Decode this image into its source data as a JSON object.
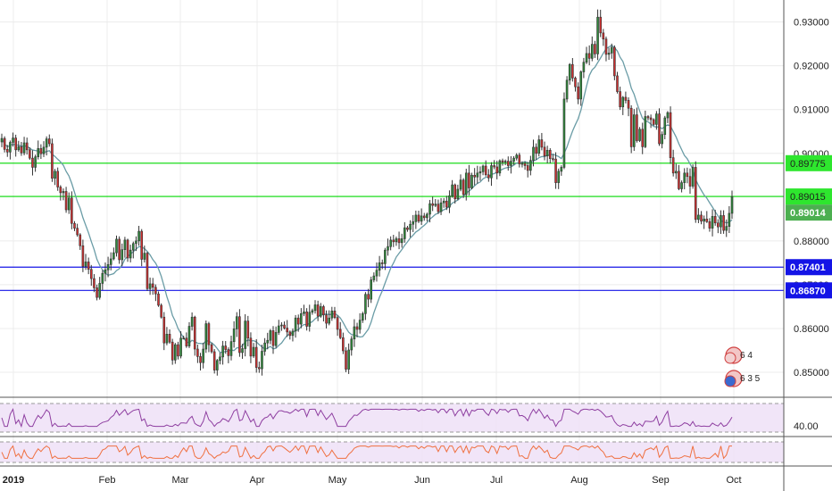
{
  "chart_data": {
    "type": "candlestick",
    "title": "",
    "x_labels": [
      "2019",
      "Feb",
      "Mar",
      "Apr",
      "May",
      "Jun",
      "Jul",
      "Aug",
      "Sep",
      "Oct"
    ],
    "y_ticks": [
      "0.93000",
      "0.92000",
      "0.91000",
      "0.90000",
      "0.88000",
      "0.87000",
      "0.86000",
      "0.85000"
    ],
    "ylim": [
      0.8445,
      0.9342
    ],
    "grid": true,
    "series": [
      {
        "name": "",
        "kind": "ohlc",
        "closes": [
          0.9034,
          0.9009,
          0.9003,
          0.9025,
          0.9035,
          0.9008,
          0.9015,
          0.9001,
          0.9024,
          0.9008,
          0.8989,
          0.8968,
          0.8992,
          0.9011,
          0.8999,
          0.9014,
          0.9033,
          0.9022,
          0.8943,
          0.8959,
          0.8923,
          0.891,
          0.8913,
          0.8871,
          0.8898,
          0.884,
          0.8829,
          0.8814,
          0.8789,
          0.8742,
          0.8752,
          0.8735,
          0.8714,
          0.8693,
          0.8671,
          0.8703,
          0.8726,
          0.8734,
          0.8746,
          0.8759,
          0.8773,
          0.8804,
          0.8757,
          0.878,
          0.8802,
          0.8761,
          0.8779,
          0.8794,
          0.88,
          0.8822,
          0.8758,
          0.8772,
          0.8691,
          0.8702,
          0.8694,
          0.8679,
          0.8653,
          0.8626,
          0.8567,
          0.8587,
          0.8569,
          0.8528,
          0.8563,
          0.8537,
          0.8578,
          0.8578,
          0.856,
          0.8605,
          0.8626,
          0.8553,
          0.8536,
          0.8522,
          0.8553,
          0.8611,
          0.8563,
          0.8547,
          0.8505,
          0.8527,
          0.8535,
          0.856,
          0.8552,
          0.8538,
          0.857,
          0.8599,
          0.8627,
          0.8545,
          0.8554,
          0.8617,
          0.8578,
          0.8537,
          0.8557,
          0.8511,
          0.8508,
          0.8548,
          0.8567,
          0.8573,
          0.8595,
          0.8561,
          0.8591,
          0.8606,
          0.8608,
          0.8601,
          0.8592,
          0.8584,
          0.8594,
          0.8624,
          0.861,
          0.8634,
          0.8638,
          0.8605,
          0.8637,
          0.8641,
          0.8654,
          0.8628,
          0.865,
          0.8631,
          0.8612,
          0.8624,
          0.864,
          0.8625,
          0.8598,
          0.8579,
          0.8549,
          0.8507,
          0.8551,
          0.8576,
          0.8604,
          0.8598,
          0.8619,
          0.8634,
          0.8678,
          0.8667,
          0.8711,
          0.872,
          0.8733,
          0.875,
          0.8748,
          0.8779,
          0.8787,
          0.8802,
          0.8798,
          0.8805,
          0.8796,
          0.8805,
          0.883,
          0.8826,
          0.8838,
          0.8844,
          0.8859,
          0.8845,
          0.8857,
          0.8853,
          0.8861,
          0.8885,
          0.8881,
          0.8884,
          0.8867,
          0.8887,
          0.8891,
          0.8877,
          0.8903,
          0.8928,
          0.8896,
          0.8918,
          0.8939,
          0.8906,
          0.8955,
          0.8921,
          0.895,
          0.8946,
          0.8955,
          0.8958,
          0.8971,
          0.8951,
          0.8944,
          0.8972,
          0.8969,
          0.8955,
          0.8983,
          0.898,
          0.8982,
          0.8972,
          0.8982,
          0.8989,
          0.8996,
          0.8976,
          0.8977,
          0.8972,
          0.8961,
          0.8984,
          0.9014,
          0.9,
          0.9031,
          0.9014,
          0.8994,
          0.9007,
          0.8988,
          0.8987,
          0.8933,
          0.8959,
          0.8968,
          0.9124,
          0.9167,
          0.9203,
          0.9172,
          0.9152,
          0.9124,
          0.9186,
          0.9208,
          0.9228,
          0.9217,
          0.9249,
          0.9227,
          0.9311,
          0.9275,
          0.9261,
          0.9226,
          0.9229,
          0.9242,
          0.9177,
          0.9141,
          0.9106,
          0.9128,
          0.9121,
          0.9103,
          0.9015,
          0.9088,
          0.9029,
          0.9055,
          0.9015,
          0.9084,
          0.9081,
          0.9077,
          0.9066,
          0.909,
          0.9022,
          0.9043,
          0.9081,
          0.9093,
          0.899,
          0.8955,
          0.8959,
          0.8919,
          0.8933,
          0.8955,
          0.8947,
          0.8925,
          0.8968,
          0.8849,
          0.8859,
          0.8845,
          0.885,
          0.8844,
          0.8829,
          0.8856,
          0.8841,
          0.8832,
          0.8858,
          0.8824,
          0.8833,
          0.8863,
          0.8901
        ]
      },
      {
        "name": "",
        "kind": "moving_average",
        "color": "#6a9ca6"
      },
      {
        "name": "",
        "kind": "oscillator",
        "pane": 1,
        "color": "#8e3ea0",
        "levels": [
          70,
          30
        ],
        "tick_label": "40.00"
      },
      {
        "name": "",
        "kind": "oscillator",
        "pane": 2,
        "color": "#f07040",
        "levels": [
          80,
          20
        ]
      }
    ],
    "horizontal_lines": [
      {
        "value": 0.89775,
        "label": "0.89775",
        "color": "#00d800"
      },
      {
        "value": 0.89015,
        "label": "0.89015",
        "color": "#00d800"
      },
      {
        "value": 0.87401,
        "label": "0.87401",
        "color": "#1414e6"
      },
      {
        "value": 0.8687,
        "label": "0.86870",
        "color": "#1414e6"
      }
    ],
    "last_price": {
      "value": 0.89014,
      "label": "0.89014",
      "color": "#4caf50"
    },
    "badges": [
      {
        "text": "6 4",
        "icon": "calendar-event-icon"
      },
      {
        "text": "6 3 5",
        "icon": "globe-news-icon"
      }
    ]
  }
}
